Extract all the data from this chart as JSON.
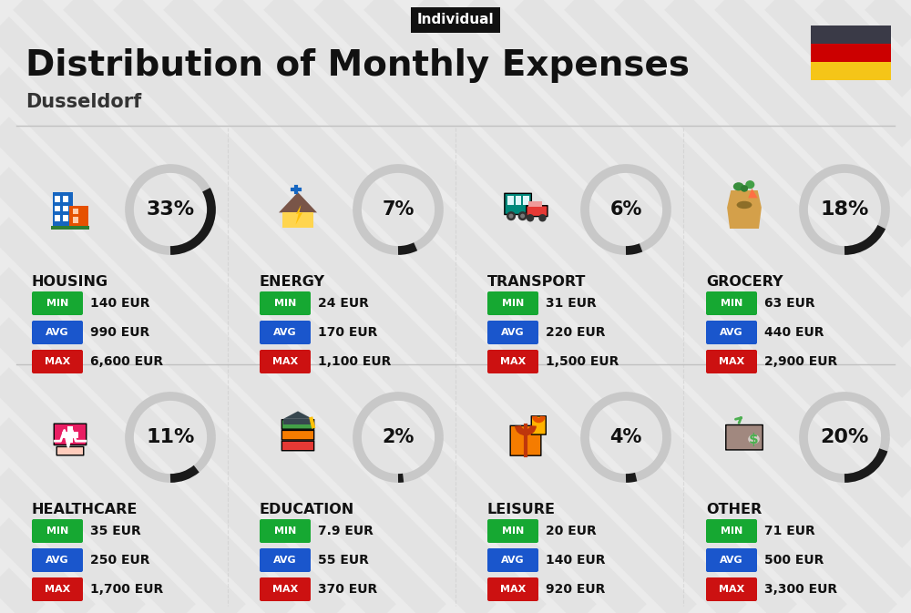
{
  "title": "Distribution of Monthly Expenses",
  "subtitle": "Dusseldorf",
  "tag": "Individual",
  "bg_color": "#ebebeb",
  "categories": [
    {
      "name": "HOUSING",
      "pct": 33,
      "min": "140 EUR",
      "avg": "990 EUR",
      "max": "6,600 EUR",
      "icon": "housing",
      "row": 0,
      "col": 0
    },
    {
      "name": "ENERGY",
      "pct": 7,
      "min": "24 EUR",
      "avg": "170 EUR",
      "max": "1,100 EUR",
      "icon": "energy",
      "row": 0,
      "col": 1
    },
    {
      "name": "TRANSPORT",
      "pct": 6,
      "min": "31 EUR",
      "avg": "220 EUR",
      "max": "1,500 EUR",
      "icon": "transport",
      "row": 0,
      "col": 2
    },
    {
      "name": "GROCERY",
      "pct": 18,
      "min": "63 EUR",
      "avg": "440 EUR",
      "max": "2,900 EUR",
      "icon": "grocery",
      "row": 0,
      "col": 3
    },
    {
      "name": "HEALTHCARE",
      "pct": 11,
      "min": "35 EUR",
      "avg": "250 EUR",
      "max": "1,700 EUR",
      "icon": "healthcare",
      "row": 1,
      "col": 0
    },
    {
      "name": "EDUCATION",
      "pct": 2,
      "min": "7.9 EUR",
      "avg": "55 EUR",
      "max": "370 EUR",
      "icon": "education",
      "row": 1,
      "col": 1
    },
    {
      "name": "LEISURE",
      "pct": 4,
      "min": "20 EUR",
      "avg": "140 EUR",
      "max": "920 EUR",
      "icon": "leisure",
      "row": 1,
      "col": 2
    },
    {
      "name": "OTHER",
      "pct": 20,
      "min": "71 EUR",
      "avg": "500 EUR",
      "max": "3,300 EUR",
      "icon": "other",
      "row": 1,
      "col": 3
    }
  ],
  "min_color": "#16a832",
  "avg_color": "#1a56cc",
  "max_color": "#cc1111",
  "label_color": "#ffffff",
  "donut_dark": "#1a1a1a",
  "donut_light": "#c8c8c8",
  "germany_colors": [
    "#3a3a47",
    "#cc0000",
    "#f5c518"
  ],
  "stripe_color": "#dedede",
  "sep_color": "#c0c0c0"
}
